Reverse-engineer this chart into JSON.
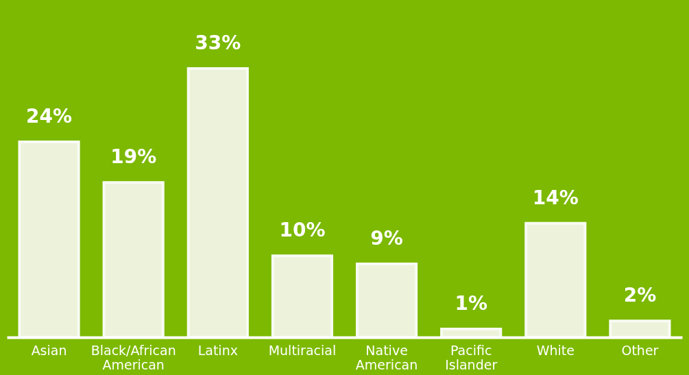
{
  "chart_data": {
    "type": "bar",
    "categories": [
      "Asian",
      "Black/African American",
      "Latinx",
      "Multiracial",
      "Native American",
      "Pacific Islander",
      "White",
      "Other"
    ],
    "values": [
      24,
      19,
      33,
      10,
      9,
      1,
      14,
      2
    ],
    "value_labels": [
      "24%",
      "19%",
      "33%",
      "10%",
      "9%",
      "1%",
      "14%",
      "2%"
    ],
    "color": "#f4f7e6"
  }
}
